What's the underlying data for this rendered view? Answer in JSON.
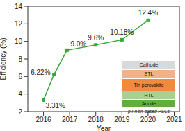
{
  "chart_data": {
    "type": "line",
    "x_label": "Year",
    "y_label": "Efficiency (%)",
    "x": [
      2016,
      2016.4,
      2016.9,
      2018,
      2019,
      2020
    ],
    "values": [
      3.31,
      6.22,
      9.0,
      9.6,
      10.18,
      12.4
    ],
    "value_labels": [
      "3.31%",
      "6.22%",
      "9.0%",
      "9.6%",
      "10.18%",
      "12.4%"
    ],
    "color": "#3aa53a",
    "marker": "square",
    "data_labels": true,
    "xlim": [
      2015.4,
      2021.2
    ],
    "xticks": [
      2016,
      2017,
      2018,
      2019,
      2020,
      2021
    ],
    "ylim": [
      2,
      14
    ],
    "yticks": [
      2,
      4,
      6,
      8,
      10,
      12,
      14
    ],
    "grid": false,
    "inset": {
      "layers": [
        {
          "label": "Cathode",
          "color": "#d9d9d9"
        },
        {
          "label": "ETL",
          "color": "#f4b183"
        },
        {
          "label": "Tin perovskite",
          "color": "#f08a3c"
        },
        {
          "label": "HTL",
          "color": "#a9d08e"
        },
        {
          "label": "Anode",
          "color": "#5fae3e"
        }
      ],
      "caption": "p-i-n tin-based PSCs"
    }
  }
}
